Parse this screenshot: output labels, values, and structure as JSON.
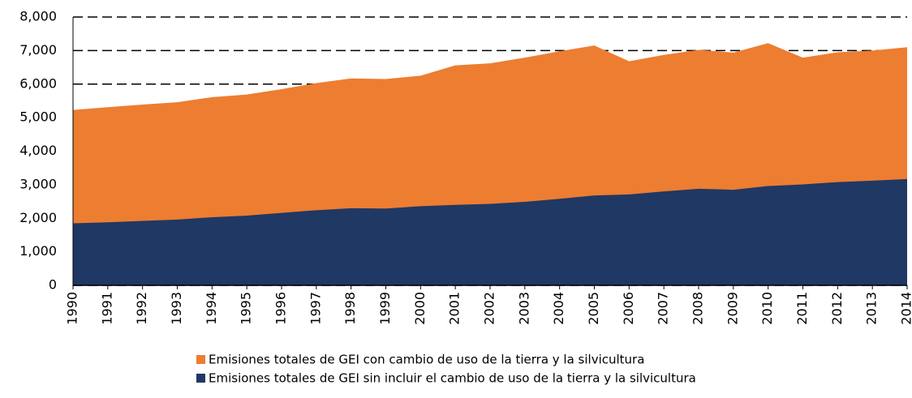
{
  "chart_data": {
    "type": "area",
    "categories": [
      "1990",
      "1991",
      "1992",
      "1993",
      "1994",
      "1995",
      "1996",
      "1997",
      "1998",
      "1999",
      "2000",
      "2001",
      "2002",
      "2003",
      "2004",
      "2005",
      "2006",
      "2007",
      "2008",
      "2009",
      "2010",
      "2011",
      "2012",
      "2013",
      "2014"
    ],
    "series": [
      {
        "name": "Emisiones totales de GEI con cambio de uso de la tierra y la silvicultura",
        "color": "#ed7d31",
        "values": [
          5230,
          5310,
          5390,
          5460,
          5610,
          5690,
          5850,
          6030,
          6170,
          6150,
          6250,
          6560,
          6620,
          6790,
          6980,
          7150,
          6680,
          6870,
          7020,
          6940,
          7220,
          6790,
          6950,
          7000,
          7100
        ]
      },
      {
        "name": "Emisiones totales de GEI sin incluir el cambio de uso de la tierra y la silvicultura",
        "color": "#203864",
        "values": [
          1850,
          1880,
          1920,
          1960,
          2030,
          2080,
          2160,
          2240,
          2300,
          2290,
          2360,
          2400,
          2430,
          2490,
          2580,
          2680,
          2710,
          2800,
          2880,
          2850,
          2960,
          3010,
          3080,
          3120,
          3170
        ]
      }
    ],
    "ylim": [
      0,
      8000
    ],
    "yticks": [
      0,
      {
        "value": 1000,
        "label": "1,000"
      },
      {
        "value": 2000,
        "label": "2,000"
      },
      {
        "value": 3000,
        "label": "3,000"
      },
      {
        "value": 4000,
        "label": "4,000"
      },
      {
        "value": 5000,
        "label": "5,000"
      },
      {
        "value": 6000,
        "label": "6,000"
      },
      {
        "value": 7000,
        "label": "7,000"
      },
      {
        "value": 8000,
        "label": "8,000"
      }
    ],
    "grid": true,
    "legend": "bottom"
  }
}
